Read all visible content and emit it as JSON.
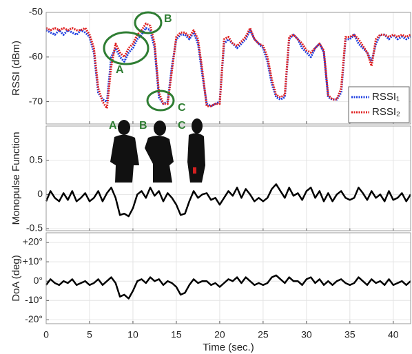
{
  "chart_data": [
    {
      "type": "line",
      "ylabel": "RSSI (dBm)",
      "xlim": [
        0,
        42
      ],
      "ylim": [
        -75,
        -50
      ],
      "yticks": [
        -50,
        -60,
        -70
      ],
      "xticks": [
        0,
        5,
        10,
        15,
        20,
        25,
        30,
        35,
        40
      ],
      "grid": true,
      "legend": "lower right",
      "annotations": [
        "A",
        "B",
        "C"
      ],
      "x": [
        0,
        0.5,
        1,
        1.5,
        2,
        2.5,
        3,
        3.5,
        4,
        4.5,
        5,
        5.5,
        6,
        6.5,
        7,
        7.5,
        8,
        8.5,
        9,
        9.5,
        10,
        10.5,
        11,
        11.5,
        12,
        12.5,
        13,
        13.5,
        14,
        14.5,
        15,
        15.5,
        16,
        16.5,
        17,
        17.5,
        18,
        18.5,
        19,
        19.5,
        20,
        20.5,
        21,
        21.5,
        22,
        22.5,
        23,
        23.5,
        24,
        24.5,
        25,
        25.5,
        26,
        26.5,
        27,
        27.5,
        28,
        28.5,
        29,
        29.5,
        30,
        30.5,
        31,
        31.5,
        32,
        32.5,
        33,
        33.5,
        34,
        34.5,
        35,
        35.5,
        36,
        36.5,
        37,
        37.5,
        38,
        38.5,
        39,
        39.5,
        40,
        40.5,
        41,
        41.5,
        42
      ],
      "series": [
        {
          "name": "RSSI₁",
          "color": "#1f3fe0",
          "values": [
            -54,
            -54.5,
            -55,
            -54,
            -55,
            -54,
            -54.5,
            -55,
            -54,
            -54.5,
            -55.5,
            -59,
            -68,
            -69.5,
            -70,
            -60,
            -58,
            -60,
            -61,
            -59,
            -58,
            -56,
            -55,
            -53.5,
            -54,
            -58,
            -69,
            -70.5,
            -70,
            -62,
            -56,
            -55,
            -55,
            -56,
            -54.5,
            -57,
            -64,
            -70.5,
            -71,
            -70.5,
            -70,
            -57,
            -56,
            -57,
            -58,
            -57,
            -56,
            -54,
            -56,
            -57,
            -58,
            -61,
            -66,
            -69,
            -69.5,
            -69,
            -56,
            -55,
            -56,
            -58,
            -59,
            -60,
            -58,
            -57,
            -59,
            -69,
            -69.5,
            -69.5,
            -68,
            -56,
            -56,
            -55,
            -57,
            -58,
            -59,
            -61,
            -57,
            -55,
            -55,
            -56,
            -55,
            -56,
            -55.5,
            -56,
            -55.5
          ]
        },
        {
          "name": "RSSI₂",
          "color": "#e02020",
          "values": [
            -53.5,
            -54,
            -53.5,
            -54,
            -53.5,
            -54,
            -53.5,
            -54,
            -54,
            -53.5,
            -55,
            -58,
            -67,
            -70,
            -71.5,
            -62,
            -57,
            -59,
            -60,
            -58,
            -57,
            -55,
            -54,
            -52.5,
            -53,
            -57,
            -68,
            -70.5,
            -70.5,
            -63,
            -55.5,
            -54.5,
            -54.5,
            -55.5,
            -54,
            -56,
            -63,
            -71,
            -71,
            -70.5,
            -70.5,
            -56,
            -55.5,
            -57,
            -57.5,
            -56.5,
            -55.5,
            -53.5,
            -56,
            -57,
            -57.5,
            -60,
            -65,
            -68.5,
            -69,
            -68.5,
            -55.5,
            -55,
            -56,
            -57,
            -58.5,
            -59,
            -58,
            -57,
            -58.5,
            -68.5,
            -69.5,
            -69.5,
            -67,
            -55.5,
            -55.5,
            -55,
            -56,
            -57.5,
            -59,
            -62,
            -56,
            -55,
            -55,
            -55.5,
            -55,
            -55.5,
            -55,
            -55.5,
            -55
          ]
        }
      ]
    },
    {
      "type": "line",
      "ylabel": "Monopulse Function",
      "xlim": [
        0,
        42
      ],
      "ylim": [
        -0.53,
        1.0
      ],
      "yticks": [
        0.5,
        0,
        -0.5
      ],
      "xticks": [
        0,
        5,
        10,
        15,
        20,
        25,
        30,
        35,
        40
      ],
      "grid": true,
      "annotations": [
        "A",
        "B",
        "C"
      ],
      "x": [
        0,
        0.5,
        1,
        1.5,
        2,
        2.5,
        3,
        3.5,
        4,
        4.5,
        5,
        5.5,
        6,
        6.5,
        7,
        7.5,
        8,
        8.5,
        9,
        9.5,
        10,
        10.5,
        11,
        11.5,
        12,
        12.5,
        13,
        13.5,
        14,
        14.5,
        15,
        15.5,
        16,
        16.5,
        17,
        17.5,
        18,
        18.5,
        19,
        19.5,
        20,
        20.5,
        21,
        21.5,
        22,
        22.5,
        23,
        23.5,
        24,
        24.5,
        25,
        25.5,
        26,
        26.5,
        27,
        27.5,
        28,
        28.5,
        29,
        29.5,
        30,
        30.5,
        31,
        31.5,
        32,
        32.5,
        33,
        33.5,
        34,
        34.5,
        35,
        35.5,
        36,
        36.5,
        37,
        37.5,
        38,
        38.5,
        39,
        39.5,
        40,
        40.5,
        41,
        41.5,
        42
      ],
      "series": [
        {
          "color": "#000000",
          "values": [
            -0.1,
            0.05,
            -0.05,
            -0.1,
            0.02,
            -0.08,
            0.05,
            -0.1,
            -0.05,
            0.02,
            -0.1,
            -0.05,
            0.05,
            -0.1,
            0.02,
            0.1,
            -0.05,
            -0.3,
            -0.28,
            -0.32,
            -0.2,
            0.0,
            0.05,
            -0.05,
            0.1,
            -0.02,
            0.05,
            -0.1,
            0.02,
            -0.05,
            -0.15,
            -0.3,
            -0.28,
            -0.1,
            0.05,
            -0.05,
            0.0,
            0.02,
            -0.08,
            -0.05,
            -0.15,
            -0.05,
            0.05,
            -0.02,
            0.1,
            -0.05,
            0.08,
            0.0,
            -0.1,
            -0.05,
            -0.1,
            -0.05,
            0.08,
            0.15,
            0.05,
            -0.05,
            0.1,
            -0.02,
            0.02,
            -0.08,
            0.05,
            0.1,
            -0.05,
            0.05,
            -0.1,
            0.02,
            -0.1,
            0.0,
            0.05,
            -0.05,
            -0.08,
            -0.05,
            0.1,
            0.02,
            -0.08,
            0.05,
            -0.05,
            0.0,
            -0.1,
            0.05,
            -0.08,
            -0.05,
            0.02,
            -0.1,
            0.0
          ]
        }
      ]
    },
    {
      "type": "line",
      "ylabel": "DoA (deg)",
      "xlabel": "Time (sec.)",
      "xlim": [
        0,
        42
      ],
      "ylim": [
        -22,
        25
      ],
      "yticks": [
        {
          "value": 20,
          "label": "+20°"
        },
        {
          "value": 10,
          "label": "+10°"
        },
        {
          "value": 0,
          "label": "0°"
        },
        {
          "value": -10,
          "label": "-10°"
        },
        {
          "value": -20,
          "label": "-20°"
        }
      ],
      "xticks": [
        0,
        5,
        10,
        15,
        20,
        25,
        30,
        35,
        40
      ],
      "grid": true,
      "x": [
        0,
        0.5,
        1,
        1.5,
        2,
        2.5,
        3,
        3.5,
        4,
        4.5,
        5,
        5.5,
        6,
        6.5,
        7,
        7.5,
        8,
        8.5,
        9,
        9.5,
        10,
        10.5,
        11,
        11.5,
        12,
        12.5,
        13,
        13.5,
        14,
        14.5,
        15,
        15.5,
        16,
        16.5,
        17,
        17.5,
        18,
        18.5,
        19,
        19.5,
        20,
        20.5,
        21,
        21.5,
        22,
        22.5,
        23,
        23.5,
        24,
        24.5,
        25,
        25.5,
        26,
        26.5,
        27,
        27.5,
        28,
        28.5,
        29,
        29.5,
        30,
        30.5,
        31,
        31.5,
        32,
        32.5,
        33,
        33.5,
        34,
        34.5,
        35,
        35.5,
        36,
        36.5,
        37,
        37.5,
        38,
        38.5,
        39,
        39.5,
        40,
        40.5,
        41,
        41.5,
        42
      ],
      "series": [
        {
          "color": "#000000",
          "values": [
            -2,
            1,
            -1,
            -2,
            0,
            -1,
            1,
            -2,
            -1,
            0,
            -2,
            -1,
            1,
            -2,
            0,
            2,
            -1,
            -8,
            -7,
            -9,
            -5,
            0,
            1,
            -1,
            2,
            0,
            1,
            -2,
            0,
            -1,
            -3,
            -7,
            -6,
            -2,
            1,
            -1,
            0,
            0,
            -2,
            -1,
            -3,
            -1,
            1,
            0,
            2,
            -1,
            2,
            0,
            -2,
            -1,
            -2,
            -1,
            2,
            3,
            1,
            -1,
            2,
            0,
            0,
            -2,
            1,
            2,
            -1,
            1,
            -2,
            0,
            -2,
            0,
            1,
            -1,
            -2,
            -1,
            2,
            0,
            -2,
            1,
            -1,
            0,
            -2,
            1,
            -2,
            -1,
            0,
            -2,
            0
          ]
        }
      ]
    }
  ]
}
